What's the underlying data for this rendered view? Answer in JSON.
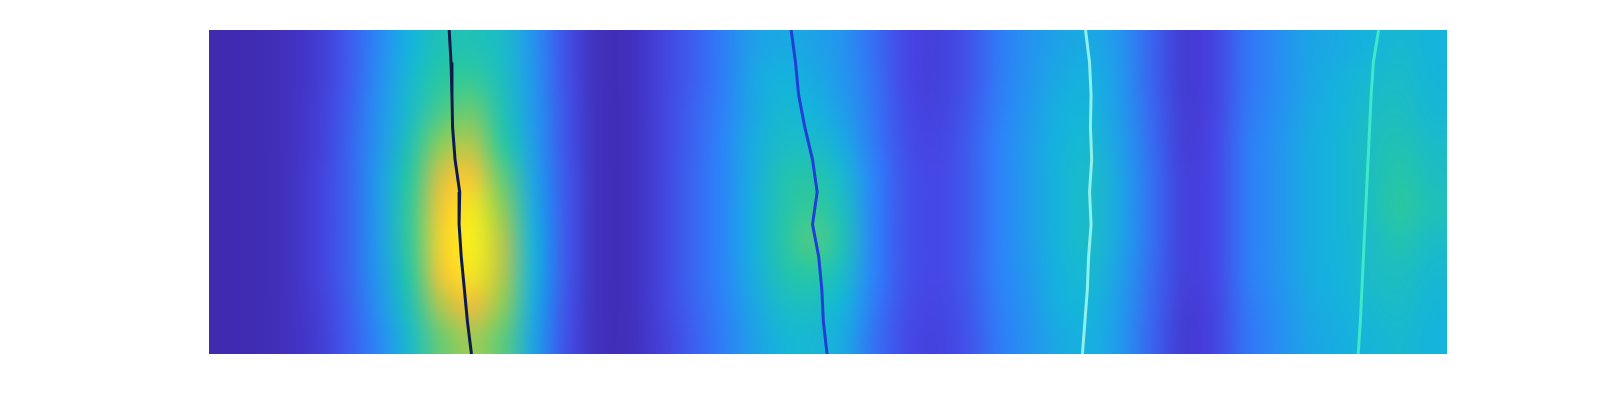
{
  "chart_data": {
    "type": "heatmap",
    "xlim": [
      0,
      40
    ],
    "ylim": [
      0,
      10
    ],
    "tick_labels": false,
    "grid": false,
    "clim": [
      0,
      1
    ],
    "cells": [
      [
        0.02,
        0.03,
        0.05,
        0.1,
        0.2,
        0.32,
        0.45,
        0.55,
        0.55,
        0.5,
        0.35,
        0.18,
        0.05,
        0.04,
        0.12,
        0.2,
        0.28,
        0.38,
        0.42,
        0.4,
        0.35,
        0.25,
        0.15,
        0.12,
        0.18,
        0.28,
        0.35,
        0.4,
        0.42,
        0.35,
        0.22,
        0.1,
        0.14,
        0.26,
        0.33,
        0.4,
        0.42,
        0.45,
        0.48,
        0.45
      ],
      [
        0.02,
        0.03,
        0.05,
        0.1,
        0.2,
        0.34,
        0.48,
        0.6,
        0.62,
        0.52,
        0.36,
        0.18,
        0.05,
        0.04,
        0.12,
        0.2,
        0.28,
        0.4,
        0.45,
        0.42,
        0.36,
        0.26,
        0.15,
        0.12,
        0.18,
        0.28,
        0.36,
        0.42,
        0.44,
        0.36,
        0.22,
        0.1,
        0.14,
        0.26,
        0.33,
        0.4,
        0.44,
        0.48,
        0.5,
        0.46
      ],
      [
        0.02,
        0.03,
        0.05,
        0.11,
        0.21,
        0.35,
        0.5,
        0.65,
        0.7,
        0.55,
        0.37,
        0.19,
        0.05,
        0.04,
        0.12,
        0.21,
        0.29,
        0.4,
        0.48,
        0.45,
        0.38,
        0.27,
        0.16,
        0.13,
        0.19,
        0.29,
        0.37,
        0.44,
        0.46,
        0.37,
        0.23,
        0.11,
        0.14,
        0.27,
        0.34,
        0.41,
        0.45,
        0.5,
        0.52,
        0.47
      ],
      [
        0.02,
        0.03,
        0.05,
        0.11,
        0.22,
        0.36,
        0.55,
        0.75,
        0.8,
        0.6,
        0.38,
        0.19,
        0.05,
        0.04,
        0.12,
        0.21,
        0.3,
        0.42,
        0.5,
        0.5,
        0.42,
        0.28,
        0.17,
        0.14,
        0.2,
        0.3,
        0.38,
        0.45,
        0.48,
        0.38,
        0.24,
        0.11,
        0.15,
        0.28,
        0.35,
        0.42,
        0.46,
        0.52,
        0.55,
        0.5
      ],
      [
        0.02,
        0.03,
        0.05,
        0.12,
        0.22,
        0.38,
        0.6,
        0.85,
        0.9,
        0.68,
        0.4,
        0.2,
        0.05,
        0.04,
        0.12,
        0.22,
        0.3,
        0.42,
        0.55,
        0.58,
        0.48,
        0.3,
        0.18,
        0.15,
        0.2,
        0.3,
        0.38,
        0.46,
        0.5,
        0.4,
        0.25,
        0.12,
        0.15,
        0.28,
        0.35,
        0.42,
        0.46,
        0.52,
        0.58,
        0.52
      ],
      [
        0.02,
        0.03,
        0.05,
        0.12,
        0.22,
        0.38,
        0.62,
        0.9,
        0.96,
        0.75,
        0.42,
        0.2,
        0.05,
        0.04,
        0.12,
        0.22,
        0.3,
        0.43,
        0.56,
        0.62,
        0.52,
        0.3,
        0.18,
        0.15,
        0.2,
        0.3,
        0.38,
        0.46,
        0.5,
        0.4,
        0.25,
        0.12,
        0.15,
        0.28,
        0.35,
        0.42,
        0.46,
        0.52,
        0.6,
        0.54
      ],
      [
        0.02,
        0.03,
        0.05,
        0.12,
        0.22,
        0.38,
        0.62,
        0.92,
        0.98,
        0.8,
        0.44,
        0.2,
        0.05,
        0.04,
        0.12,
        0.22,
        0.3,
        0.43,
        0.58,
        0.66,
        0.55,
        0.3,
        0.18,
        0.15,
        0.2,
        0.3,
        0.38,
        0.46,
        0.5,
        0.4,
        0.25,
        0.12,
        0.15,
        0.28,
        0.35,
        0.42,
        0.46,
        0.5,
        0.56,
        0.5
      ],
      [
        0.02,
        0.03,
        0.05,
        0.12,
        0.22,
        0.37,
        0.6,
        0.9,
        0.96,
        0.8,
        0.44,
        0.2,
        0.05,
        0.04,
        0.12,
        0.22,
        0.3,
        0.42,
        0.55,
        0.6,
        0.5,
        0.3,
        0.18,
        0.15,
        0.2,
        0.3,
        0.37,
        0.45,
        0.48,
        0.38,
        0.24,
        0.12,
        0.15,
        0.28,
        0.35,
        0.42,
        0.45,
        0.5,
        0.52,
        0.48
      ],
      [
        0.02,
        0.03,
        0.05,
        0.11,
        0.21,
        0.35,
        0.55,
        0.8,
        0.88,
        0.75,
        0.42,
        0.19,
        0.05,
        0.04,
        0.12,
        0.21,
        0.29,
        0.4,
        0.5,
        0.52,
        0.45,
        0.28,
        0.17,
        0.14,
        0.19,
        0.29,
        0.36,
        0.44,
        0.46,
        0.37,
        0.23,
        0.11,
        0.14,
        0.27,
        0.34,
        0.41,
        0.44,
        0.48,
        0.5,
        0.46
      ],
      [
        0.02,
        0.03,
        0.05,
        0.1,
        0.2,
        0.32,
        0.5,
        0.7,
        0.78,
        0.68,
        0.4,
        0.18,
        0.05,
        0.04,
        0.11,
        0.2,
        0.28,
        0.38,
        0.46,
        0.48,
        0.42,
        0.26,
        0.16,
        0.13,
        0.18,
        0.28,
        0.35,
        0.42,
        0.44,
        0.36,
        0.22,
        0.1,
        0.14,
        0.26,
        0.33,
        0.4,
        0.43,
        0.46,
        0.48,
        0.45
      ]
    ],
    "series": [
      {
        "type": "line",
        "color": "#0d1b4c",
        "x": [
          7.76,
          7.82,
          7.85,
          7.87,
          7.95,
          8.1,
          8.08,
          8.15,
          8.25,
          8.35,
          8.48
        ],
        "values": [
          10,
          9,
          8,
          7,
          6,
          5,
          4,
          3,
          2,
          1,
          0
        ]
      },
      {
        "type": "line",
        "color": "#1f3fd6",
        "x": [
          18.81,
          18.95,
          19.05,
          19.25,
          19.5,
          19.65,
          19.5,
          19.7,
          19.8,
          19.85,
          19.97
        ],
        "values": [
          10,
          9,
          8,
          7,
          6,
          5,
          4,
          3,
          2,
          1,
          0
        ]
      },
      {
        "type": "line",
        "color": "#8ff0ea",
        "x": [
          28.32,
          28.45,
          28.5,
          28.48,
          28.52,
          28.45,
          28.5,
          28.42,
          28.38,
          28.3,
          28.22
        ],
        "values": [
          10,
          9,
          8,
          7,
          6,
          5,
          4,
          3,
          2,
          1,
          0
        ]
      },
      {
        "type": "line",
        "color": "#3ee8c8",
        "x": [
          37.79,
          37.62,
          37.55,
          37.5,
          37.45,
          37.4,
          37.35,
          37.3,
          37.25,
          37.2,
          37.13
        ],
        "values": [
          10,
          9,
          8,
          7,
          6,
          5,
          4,
          3,
          2,
          1,
          0
        ]
      }
    ]
  }
}
